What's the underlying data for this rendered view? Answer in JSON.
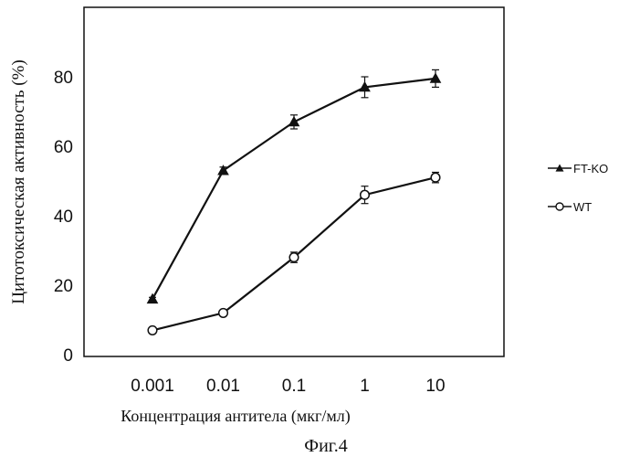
{
  "chart_data": {
    "type": "line",
    "xlabel": "Концентрация антитела (мкг/мл)",
    "ylabel": "Цитотоксическая активность (%)",
    "caption": "Фиг.4",
    "x_scale": "log",
    "categories": [
      "0.001",
      "0.01",
      "0.1",
      "1",
      "10"
    ],
    "x": [
      0.001,
      0.01,
      0.1,
      1,
      10
    ],
    "ylim": [
      0,
      100
    ],
    "yticks": [
      "0",
      "20",
      "40",
      "60",
      "80"
    ],
    "grid": false,
    "legend_position": "right",
    "series": [
      {
        "name": "FT-KO",
        "marker": "filled-triangle",
        "values": [
          16,
          53,
          67,
          77,
          79.5
        ],
        "errors": [
          0.5,
          1,
          2,
          3,
          2.5
        ]
      },
      {
        "name": "WT",
        "marker": "open-circle",
        "values": [
          7,
          12,
          28,
          46,
          51
        ],
        "errors": [
          0.5,
          0.5,
          1.5,
          2.5,
          1.5
        ]
      }
    ]
  }
}
